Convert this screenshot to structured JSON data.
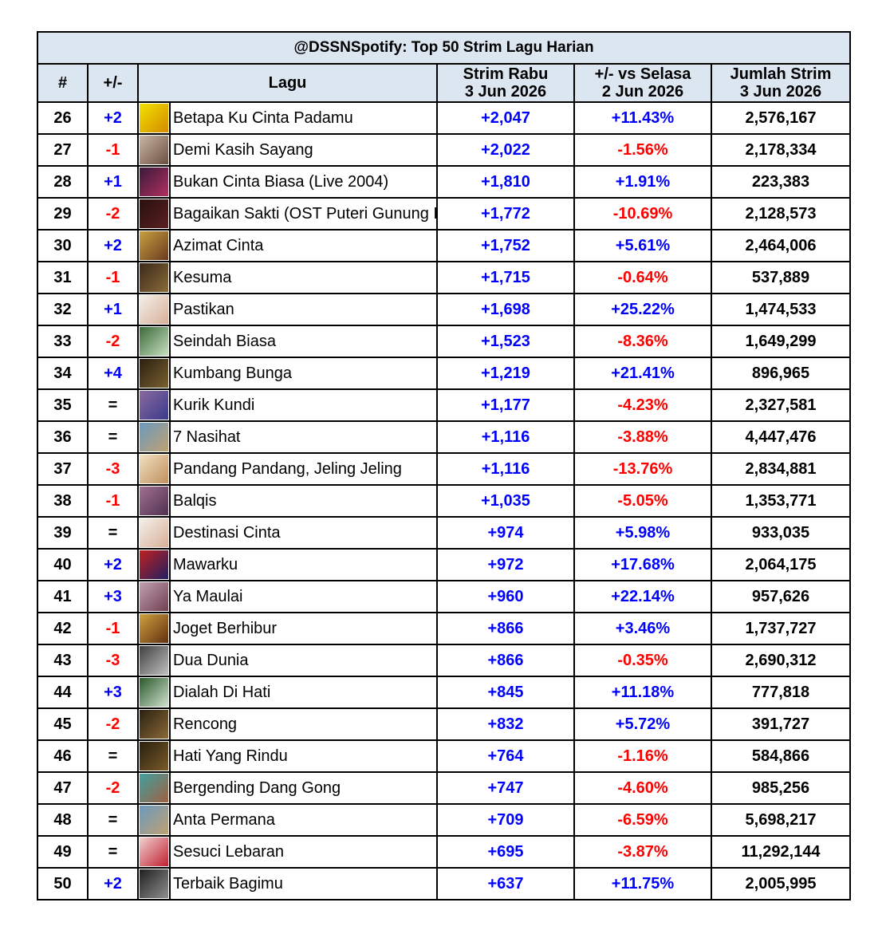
{
  "title": "@DSSNSpotify: Top 50 Strim Lagu Harian",
  "headers": {
    "rank": "#",
    "change": "+/-",
    "song": "Lagu",
    "streams_l1": "Strim Rabu",
    "streams_l2": "3 Jun 2026",
    "vs_l1": "+/- vs Selasa",
    "vs_l2": "2 Jun 2026",
    "total_l1": "Jumlah Strim",
    "total_l2": "3 Jun 2026"
  },
  "colors": {
    "header_bg": "#dce6f1",
    "positive": "#0000ff",
    "negative": "#ff0000"
  },
  "rows": [
    {
      "rank": "26",
      "change": "+2",
      "song": "Betapa Ku Cinta Padamu",
      "streams": "+2,047",
      "vs": "+11.43%",
      "total": "2,576,167",
      "art": [
        "#f2e200",
        "#d48a00"
      ]
    },
    {
      "rank": "27",
      "change": "-1",
      "song": "Demi Kasih Sayang",
      "streams": "+2,022",
      "vs": "-1.56%",
      "total": "2,178,334",
      "art": [
        "#c9b6a6",
        "#6b4f3f"
      ]
    },
    {
      "rank": "28",
      "change": "+1",
      "song": "Bukan Cinta Biasa (Live 2004)",
      "streams": "+1,810",
      "vs": "+1.91%",
      "total": "223,383",
      "art": [
        "#3a1a3a",
        "#b03060"
      ]
    },
    {
      "rank": "29",
      "change": "-2",
      "song": "Bagaikan Sakti (OST Puteri Gunung Ledang)",
      "streams": "+1,772",
      "vs": "-10.69%",
      "total": "2,128,573",
      "art": [
        "#2a1010",
        "#5a2020"
      ]
    },
    {
      "rank": "30",
      "change": "+2",
      "song": "Azimat Cinta",
      "streams": "+1,752",
      "vs": "+5.61%",
      "total": "2,464,006",
      "art": [
        "#c8a040",
        "#6a3a20"
      ]
    },
    {
      "rank": "31",
      "change": "-1",
      "song": "Kesuma",
      "streams": "+1,715",
      "vs": "-0.64%",
      "total": "537,889",
      "art": [
        "#3a2a1a",
        "#8a6a3a"
      ]
    },
    {
      "rank": "32",
      "change": "+1",
      "song": "Pastikan",
      "streams": "+1,698",
      "vs": "+25.22%",
      "total": "1,474,533",
      "art": [
        "#f4f0ea",
        "#d8b098"
      ]
    },
    {
      "rank": "33",
      "change": "-2",
      "song": "Seindah Biasa",
      "streams": "+1,523",
      "vs": "-8.36%",
      "total": "1,649,299",
      "art": [
        "#3a6a3a",
        "#c8e0c0"
      ]
    },
    {
      "rank": "34",
      "change": "+4",
      "song": "Kumbang Bunga",
      "streams": "+1,219",
      "vs": "+21.41%",
      "total": "896,965",
      "art": [
        "#2a2010",
        "#7a6030"
      ]
    },
    {
      "rank": "35",
      "change": "=",
      "song": "Kurik Kundi",
      "streams": "+1,177",
      "vs": "-4.23%",
      "total": "2,327,581",
      "art": [
        "#8a6aa0",
        "#3a3a8a"
      ]
    },
    {
      "rank": "36",
      "change": "=",
      "song": "7 Nasihat",
      "streams": "+1,116",
      "vs": "-3.88%",
      "total": "4,447,476",
      "art": [
        "#6a9ac0",
        "#c0a070"
      ]
    },
    {
      "rank": "37",
      "change": "-3",
      "song": "Pandang Pandang, Jeling Jeling",
      "streams": "+1,116",
      "vs": "-13.76%",
      "total": "2,834,881",
      "art": [
        "#f0e0c0",
        "#c09060"
      ]
    },
    {
      "rank": "38",
      "change": "-1",
      "song": "Balqis",
      "streams": "+1,035",
      "vs": "-5.05%",
      "total": "1,353,771",
      "art": [
        "#a07090",
        "#503050"
      ]
    },
    {
      "rank": "39",
      "change": "=",
      "song": "Destinasi Cinta",
      "streams": "+974",
      "vs": "+5.98%",
      "total": "933,035",
      "art": [
        "#f4f0ea",
        "#d8b098"
      ]
    },
    {
      "rank": "40",
      "change": "+2",
      "song": "Mawarku",
      "streams": "+972",
      "vs": "+17.68%",
      "total": "2,064,175",
      "art": [
        "#c02020",
        "#202060"
      ]
    },
    {
      "rank": "41",
      "change": "+3",
      "song": "Ya Maulai",
      "streams": "+960",
      "vs": "+22.14%",
      "total": "957,626",
      "art": [
        "#c0a0b0",
        "#704050"
      ]
    },
    {
      "rank": "42",
      "change": "-1",
      "song": "Joget Berhibur",
      "streams": "+866",
      "vs": "+3.46%",
      "total": "1,737,727",
      "art": [
        "#d0a040",
        "#603010"
      ]
    },
    {
      "rank": "43",
      "change": "-3",
      "song": "Dua Dunia",
      "streams": "+866",
      "vs": "-0.35%",
      "total": "2,690,312",
      "art": [
        "#404040",
        "#c0c0c0"
      ]
    },
    {
      "rank": "44",
      "change": "+3",
      "song": "Dialah Di Hati",
      "streams": "+845",
      "vs": "+11.18%",
      "total": "777,818",
      "art": [
        "#2a5a2a",
        "#d0e0d0"
      ]
    },
    {
      "rank": "45",
      "change": "-2",
      "song": "Rencong",
      "streams": "+832",
      "vs": "+5.72%",
      "total": "391,727",
      "art": [
        "#2a2010",
        "#8a6a3a"
      ]
    },
    {
      "rank": "46",
      "change": "=",
      "song": "Hati Yang Rindu",
      "streams": "+764",
      "vs": "-1.16%",
      "total": "584,866",
      "art": [
        "#2a2010",
        "#7a5a2a"
      ]
    },
    {
      "rank": "47",
      "change": "-2",
      "song": "Bergending Dang Gong",
      "streams": "+747",
      "vs": "-4.60%",
      "total": "985,256",
      "art": [
        "#40a0a0",
        "#a06040"
      ]
    },
    {
      "rank": "48",
      "change": "=",
      "song": "Anta Permana",
      "streams": "+709",
      "vs": "-6.59%",
      "total": "5,698,217",
      "art": [
        "#6a9ac0",
        "#c0a070"
      ]
    },
    {
      "rank": "49",
      "change": "=",
      "song": "Sesuci Lebaran",
      "streams": "+695",
      "vs": "-3.87%",
      "total": "11,292,144",
      "art": [
        "#f0d0d0",
        "#c02030"
      ]
    },
    {
      "rank": "50",
      "change": "+2",
      "song": "Terbaik Bagimu",
      "streams": "+637",
      "vs": "+11.75%",
      "total": "2,005,995",
      "art": [
        "#202020",
        "#909090"
      ]
    }
  ]
}
